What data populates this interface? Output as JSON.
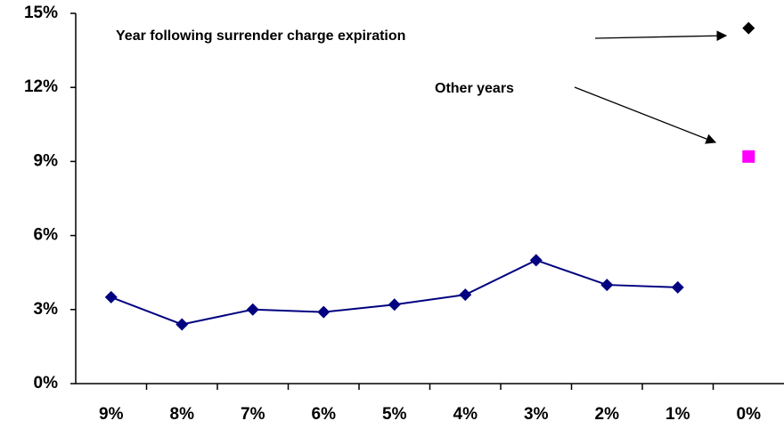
{
  "chart_data": {
    "type": "line",
    "categories": [
      "9%",
      "8%",
      "7%",
      "6%",
      "5%",
      "4%",
      "3%",
      "2%",
      "1%",
      "0%"
    ],
    "series": [
      {
        "color": "#000080",
        "marker": "diamond",
        "line": true,
        "values": [
          3.5,
          2.4,
          3.0,
          2.9,
          3.2,
          3.6,
          5.0,
          4.0,
          3.9,
          null
        ]
      },
      {
        "color": "#000000",
        "marker": "diamond",
        "line": false,
        "values": [
          null,
          null,
          null,
          null,
          null,
          null,
          null,
          null,
          null,
          14.4
        ]
      },
      {
        "color": "#ff00ff",
        "marker": "square",
        "line": false,
        "values": [
          null,
          null,
          null,
          null,
          null,
          null,
          null,
          null,
          null,
          9.2
        ]
      }
    ],
    "annotations": [
      {
        "text": "Year following  surrender charge expiration"
      },
      {
        "text": "Other years"
      }
    ],
    "ylim": [
      0,
      15
    ],
    "yticks": [
      {
        "value": 0,
        "label": "0%"
      },
      {
        "value": 3,
        "label": "3%"
      },
      {
        "value": 6,
        "label": "6%"
      },
      {
        "value": 9,
        "label": "9%"
      },
      {
        "value": 12,
        "label": "12%"
      },
      {
        "value": 15,
        "label": "15%"
      }
    ],
    "grid": false
  }
}
